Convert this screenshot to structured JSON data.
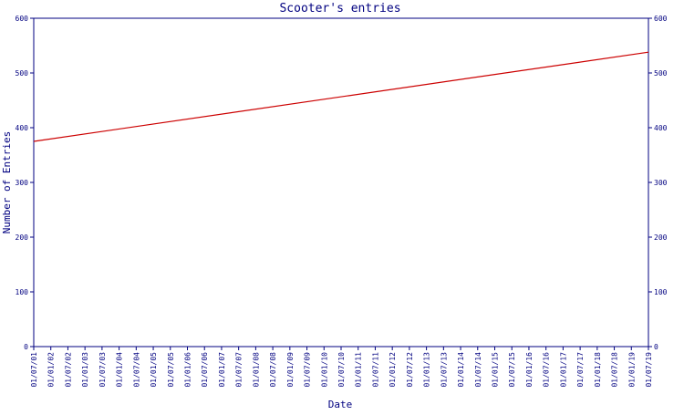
{
  "chart_data": {
    "type": "line",
    "title": "Scooter's entries",
    "xlabel": "Date",
    "ylabel": "Number of Entries",
    "ylim": [
      0,
      600
    ],
    "y_ticks": [
      0,
      100,
      200,
      300,
      400,
      500,
      600
    ],
    "secondary_y_axis": true,
    "grid": false,
    "categories": [
      "01/07/01",
      "01/01/02",
      "01/07/02",
      "01/01/03",
      "01/07/03",
      "01/01/04",
      "01/07/04",
      "01/01/05",
      "01/07/05",
      "01/01/06",
      "01/07/06",
      "01/01/07",
      "01/07/07",
      "01/01/08",
      "01/07/08",
      "01/01/09",
      "01/07/09",
      "01/01/10",
      "01/07/10",
      "01/01/11",
      "01/07/11",
      "01/01/12",
      "01/07/12",
      "01/01/13",
      "01/07/13",
      "01/01/14",
      "01/07/14",
      "01/01/15",
      "01/07/15",
      "01/01/16",
      "01/07/16",
      "01/01/17",
      "01/07/17",
      "01/01/18",
      "01/07/18",
      "01/01/19",
      "01/07/19"
    ],
    "series": [
      {
        "color": "#cc0000",
        "x": [
          "01/07/01",
          "01/07/19"
        ],
        "y": [
          375,
          538
        ]
      }
    ],
    "colors": {
      "axis": "#000080",
      "text": "#000080",
      "line": "#cc0000"
    }
  }
}
